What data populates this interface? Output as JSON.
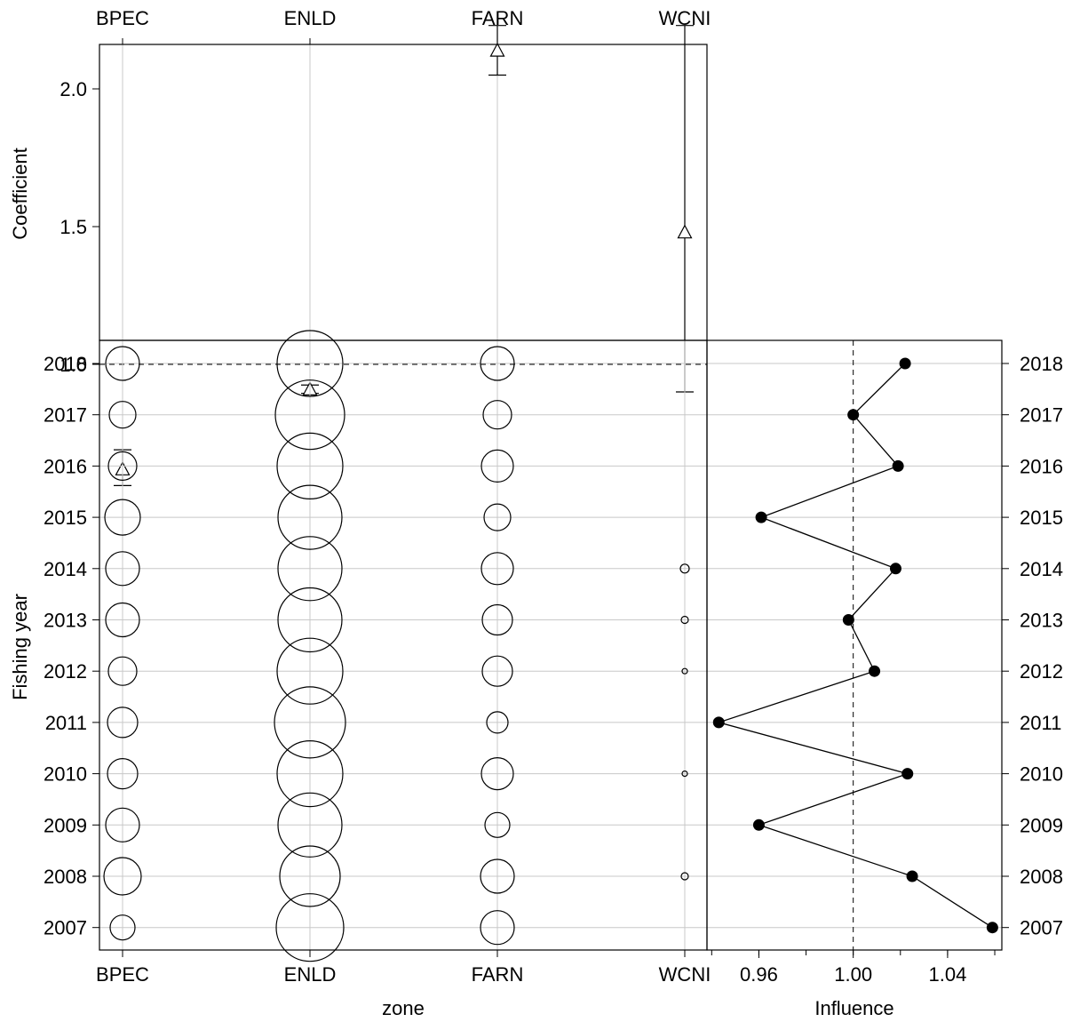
{
  "chart_data": [
    {
      "type": "scatter",
      "panel": "coefficient",
      "xlabel": "",
      "ylabel": "Coefficient",
      "categories": [
        "BPEC",
        "ENLD",
        "FARN",
        "WCNI"
      ],
      "ylim": [
        0.55,
        2.3
      ],
      "yticks": [
        "2.0",
        "1.5",
        "1.0"
      ],
      "ytick_values": [
        2.0,
        1.5,
        1.0
      ],
      "reference_line": 1.0,
      "points": [
        {
          "zone": "BPEC",
          "value": 0.62,
          "lower": 0.56,
          "upper": 0.69
        },
        {
          "zone": "ENLD",
          "value": 0.91,
          "lower": 0.895,
          "upper": 0.925
        },
        {
          "zone": "FARN",
          "value": 2.14,
          "lower": 2.05,
          "upper": 2.23
        },
        {
          "zone": "WCNI",
          "value": 1.48,
          "lower": 0.9,
          "upper": 2.23
        }
      ]
    },
    {
      "type": "bubble",
      "panel": "distribution",
      "xlabel": "zone",
      "ylabel": "Fishing year",
      "categories": [
        "BPEC",
        "ENLD",
        "FARN",
        "WCNI"
      ],
      "years": [
        "2018",
        "2017",
        "2016",
        "2015",
        "2014",
        "2013",
        "2012",
        "2011",
        "2010",
        "2009",
        "2008",
        "2007"
      ],
      "values": {
        "BPEC": [
          19,
          15,
          16,
          20,
          19,
          19,
          16,
          17,
          17,
          19,
          21,
          14
        ],
        "ENLD": [
          37,
          39,
          37,
          36,
          36,
          36,
          37,
          40,
          37,
          36,
          34,
          38
        ],
        "FARN": [
          19,
          16,
          18,
          15,
          18,
          17,
          17,
          12,
          18,
          14,
          19,
          19
        ],
        "WCNI": [
          0,
          0,
          0,
          0,
          5,
          4,
          3,
          0,
          3,
          0,
          4,
          0
        ]
      }
    },
    {
      "type": "line",
      "panel": "influence",
      "xlabel": "Influence",
      "ylabel": "",
      "xlim": [
        0.938,
        1.063
      ],
      "xticks": [
        "0.96",
        "1.00",
        "1.04"
      ],
      "xtick_values": [
        0.96,
        1.0,
        1.04
      ],
      "reference_line": 1.0,
      "years": [
        "2018",
        "2017",
        "2016",
        "2015",
        "2014",
        "2013",
        "2012",
        "2011",
        "2010",
        "2009",
        "2008",
        "2007"
      ],
      "values": [
        1.022,
        1.0,
        1.019,
        0.961,
        1.018,
        0.998,
        1.009,
        0.943,
        1.023,
        0.96,
        1.025,
        1.059
      ]
    }
  ]
}
